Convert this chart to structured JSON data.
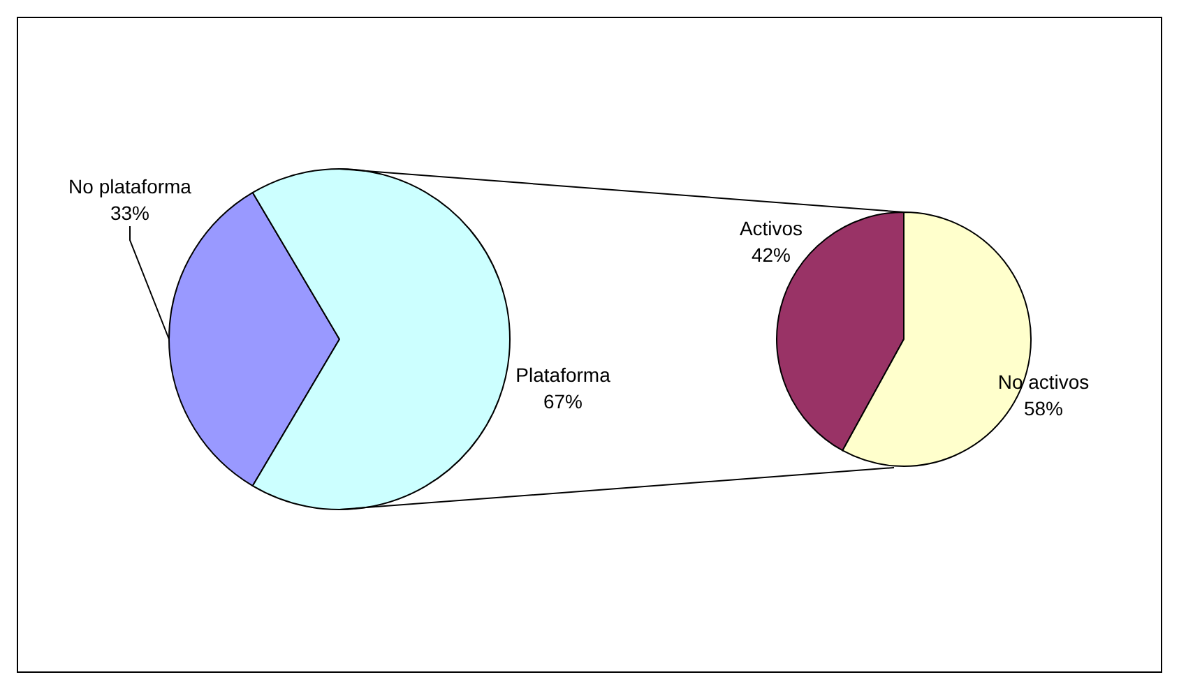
{
  "chart_data": [
    {
      "type": "pie",
      "categories": [
        "No plataforma",
        "Plataforma"
      ],
      "values": [
        33,
        67
      ],
      "value_labels": [
        "33%",
        "67%"
      ],
      "colors": [
        "#9999ff",
        "#ccffff"
      ]
    },
    {
      "type": "pie",
      "categories": [
        "Activos",
        "No activos"
      ],
      "values": [
        42,
        58
      ],
      "value_labels": [
        "42%",
        "58%"
      ],
      "colors": [
        "#993366",
        "#ffffcc"
      ]
    }
  ]
}
